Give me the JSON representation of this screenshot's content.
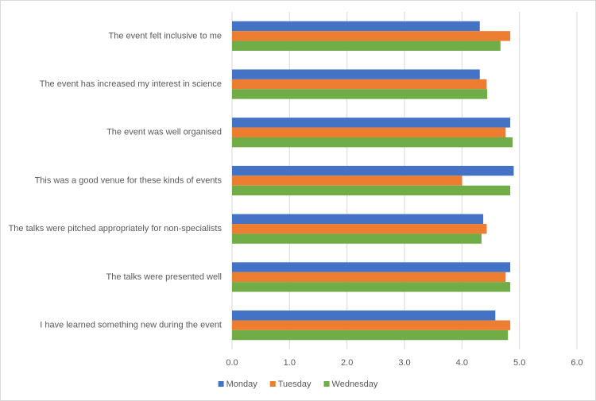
{
  "chart_data": {
    "type": "hbar",
    "categories": [
      "The event felt inclusive to me",
      "The event has increased my interest in science",
      "The event was well organised",
      "This was a good venue for these kinds of events",
      "The talks were pitched appropriately for non-specialists",
      "The talks were presented well",
      "I have learned something new during the event"
    ],
    "series": [
      {
        "name": "Monday",
        "color": "#4472c4",
        "values": [
          4.31,
          4.31,
          4.84,
          4.9,
          4.37,
          4.84,
          4.58
        ]
      },
      {
        "name": "Tuesday",
        "color": "#ed7d31",
        "values": [
          4.84,
          4.43,
          4.76,
          4.0,
          4.43,
          4.76,
          4.84
        ]
      },
      {
        "name": "Wednesday",
        "color": "#70ad47",
        "values": [
          4.67,
          4.44,
          4.88,
          4.84,
          4.34,
          4.84,
          4.8
        ]
      }
    ],
    "xlim": [
      0,
      6
    ],
    "xticks": [
      {
        "value": 0,
        "label": "0.0"
      },
      {
        "value": 1,
        "label": "1.0"
      },
      {
        "value": 2,
        "label": "2.0"
      },
      {
        "value": 3,
        "label": "3.0"
      },
      {
        "value": 4,
        "label": "4.0"
      },
      {
        "value": 5,
        "label": "5.0"
      },
      {
        "value": 6,
        "label": "6.0"
      }
    ],
    "grid": true,
    "legend": "bottom"
  }
}
